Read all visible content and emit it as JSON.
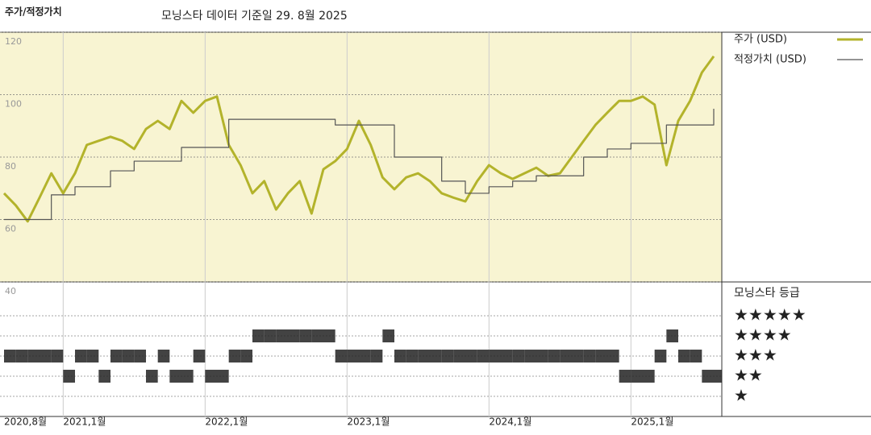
{
  "chart_data": {
    "type": "line",
    "title": "주가/적정가치",
    "subtitle": "모닝스타 데이터 기준일 29. 8월 2025",
    "categories": [
      "2020,8월",
      null,
      null,
      null,
      null,
      "2021,1월",
      null,
      null,
      null,
      null,
      null,
      null,
      null,
      null,
      null,
      null,
      null,
      "2022,1월",
      null,
      null,
      null,
      null,
      null,
      null,
      null,
      null,
      null,
      null,
      null,
      "2023,1월",
      null,
      null,
      null,
      null,
      null,
      null,
      null,
      null,
      null,
      null,
      null,
      "2024,1월",
      null,
      null,
      null,
      null,
      null,
      null,
      null,
      null,
      null,
      null,
      null,
      "2025,1월",
      null,
      null,
      null,
      null,
      null,
      null,
      null
    ],
    "series": [
      {
        "name": "주가 (USD)",
        "color": "#b3b32b",
        "width": 3,
        "values": [
          68.4,
          64.5,
          59.4,
          67,
          74.8,
          68.4,
          74.8,
          83.9,
          85.2,
          86.5,
          85.2,
          82.6,
          89,
          91.6,
          89,
          98,
          94.2,
          98,
          99.4,
          83.9,
          77.4,
          68.4,
          72.3,
          63.2,
          68.4,
          72.3,
          61.9,
          76.1,
          78.7,
          82.6,
          91.6,
          83.9,
          73.5,
          69.7,
          73.5,
          74.8,
          72.3,
          68.4,
          67,
          65.8,
          72.3,
          77.4,
          74.8,
          73,
          74.8,
          76.6,
          74,
          74.8,
          80,
          85.2,
          90.3,
          94.2,
          98,
          98,
          99.4,
          96.8,
          77.4,
          91.6,
          98,
          107.1,
          112.3
        ]
      },
      {
        "name": "적정가치 (USD)",
        "color": "#555555",
        "width": 1.2,
        "drawstyle": "steps-post",
        "values": [
          60,
          60,
          60,
          60,
          67.9,
          67.9,
          70.5,
          70.5,
          70.5,
          75.6,
          75.6,
          78.7,
          78.7,
          78.7,
          78.7,
          83.1,
          83.1,
          83.1,
          83.1,
          92.1,
          92.1,
          92.1,
          92.1,
          92.1,
          92.1,
          92.1,
          92.1,
          92.1,
          90.3,
          90.3,
          90.3,
          90.3,
          90.3,
          80,
          80,
          80,
          80,
          72.3,
          72.3,
          68.4,
          68.4,
          70.5,
          70.5,
          72.3,
          72.3,
          74,
          74,
          74,
          74,
          80,
          80,
          82.6,
          82.6,
          84.4,
          84.4,
          84.4,
          90.3,
          90.3,
          90.3,
          90.3,
          95.5
        ]
      }
    ],
    "ylim": [
      40,
      120
    ],
    "yticks": [
      40,
      60,
      80,
      100,
      120
    ],
    "grid": true,
    "ratings": {
      "title": "모닝스타 등급",
      "labels": [
        "★",
        "★★",
        "★★★",
        "★★★★",
        "★★★★★"
      ],
      "color": "#222222",
      "values": [
        3,
        3,
        3,
        3,
        3,
        2,
        3,
        3,
        2,
        3,
        3,
        3,
        2,
        3,
        2,
        2,
        3,
        2,
        2,
        3,
        3,
        4,
        4,
        4,
        4,
        4,
        4,
        4,
        3,
        3,
        3,
        3,
        4,
        3,
        3,
        3,
        3,
        3,
        3,
        3,
        3,
        3,
        3,
        3,
        3,
        3,
        3,
        3,
        3,
        3,
        3,
        3,
        2,
        2,
        2,
        3,
        4,
        3,
        3,
        2,
        2
      ]
    }
  }
}
